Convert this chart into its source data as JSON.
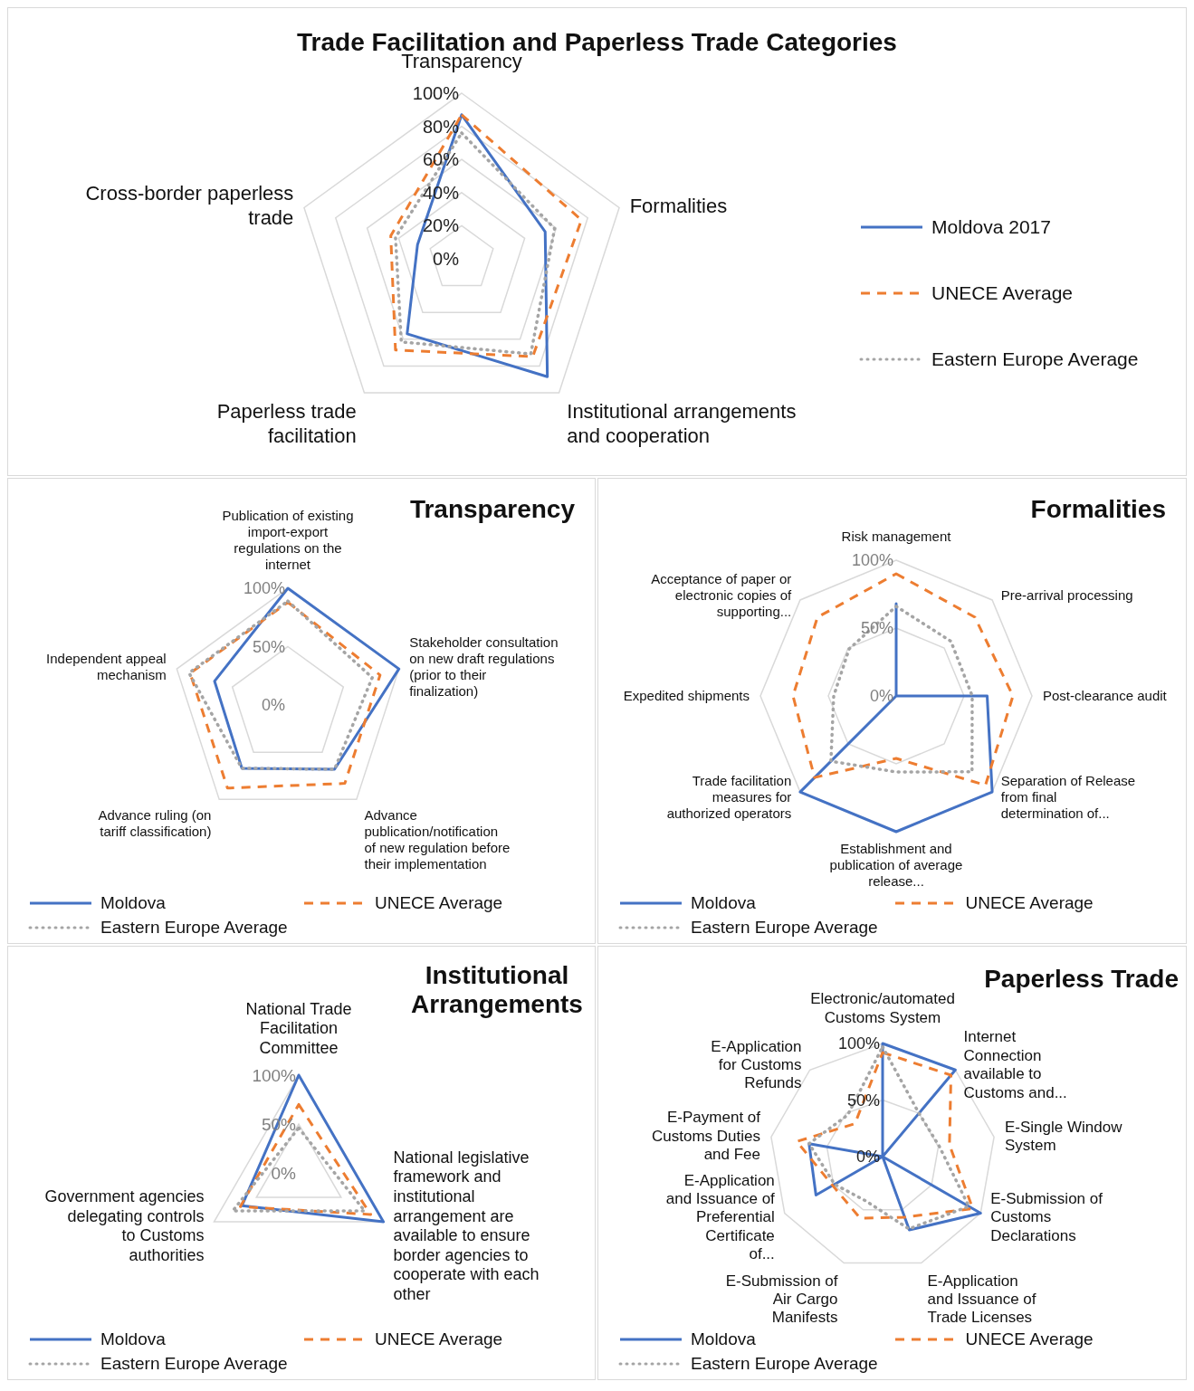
{
  "chart_data": [
    {
      "type": "radar",
      "title": "Trade Facilitation and Paperless Trade Categories",
      "categories": [
        "Transparency",
        "Formalities",
        "Institutional arrangements and cooperation",
        "Paperless trade facilitation",
        "Cross-border paperless trade"
      ],
      "ylim": [
        0,
        100
      ],
      "yticks": [
        {
          "value": 0,
          "label": "0%"
        },
        {
          "value": 20,
          "label": "20%"
        },
        {
          "value": 40,
          "label": "40%"
        },
        {
          "value": 60,
          "label": "60%"
        },
        {
          "value": 80,
          "label": "80%"
        },
        {
          "value": 100,
          "label": "100%"
        }
      ],
      "grid": true,
      "legend": "right",
      "marker": "none",
      "series": [
        {
          "name": "Moldova 2017",
          "color": "#4472c4",
          "line_style": "solid",
          "values": [
            87,
            53,
            88,
            56,
            28
          ]
        },
        {
          "name": "UNECE Average",
          "color": "#ed7d31",
          "line_style": "dashed",
          "values": [
            87,
            76,
            73,
            68,
            45
          ]
        },
        {
          "name": "Eastern Europe Average",
          "color": "#a5a5a5",
          "line_style": "dotted",
          "values": [
            76,
            59,
            71,
            62,
            42
          ]
        }
      ]
    },
    {
      "type": "radar",
      "title": "Transparency",
      "categories": [
        "Publication of existing import-export regulations on the internet",
        "Stakeholder consultation on new draft regulations (prior to their finalization)",
        "Advance publication/notification of new regulation before their implementation",
        "Advance ruling (on tariff classification)",
        "Independent appeal mechanism"
      ],
      "ylim": [
        0,
        100
      ],
      "yticks": [
        {
          "value": 0,
          "label": "0%"
        },
        {
          "value": 50,
          "label": "50%"
        },
        {
          "value": 100,
          "label": "100%"
        }
      ],
      "grid": true,
      "legend": "bottom",
      "marker": "none",
      "series": [
        {
          "name": "Moldova",
          "color": "#4472c4",
          "line_style": "solid",
          "values": [
            100,
            100,
            68,
            67,
            66
          ]
        },
        {
          "name": "UNECE Average",
          "color": "#ed7d31",
          "line_style": "dashed",
          "values": [
            88,
            83,
            83,
            88,
            88
          ]
        },
        {
          "name": "Eastern Europe Average",
          "color": "#a5a5a5",
          "line_style": "dotted",
          "values": [
            89,
            76,
            68,
            67,
            89
          ]
        }
      ]
    },
    {
      "type": "radar",
      "title": "Formalities",
      "categories": [
        "Risk management",
        "Pre-arrival processing",
        "Post-clearance audit",
        "Separation of Release from final determination of...",
        "Establishment and publication of average release...",
        "Trade facilitation measures for authorized operators",
        "Expedited shipments",
        "Acceptance of paper or electronic copies of supporting..."
      ],
      "ylim": [
        0,
        100
      ],
      "yticks": [
        {
          "value": 0,
          "label": "0%"
        },
        {
          "value": 50,
          "label": "50%"
        },
        {
          "value": 100,
          "label": "100%"
        }
      ],
      "grid": true,
      "legend": "bottom",
      "marker": "none",
      "series": [
        {
          "name": "Moldova",
          "color": "#4472c4",
          "line_style": "solid",
          "values": [
            68,
            0,
            67,
            100,
            100,
            100,
            0,
            0
          ]
        },
        {
          "name": "UNECE Average",
          "color": "#ed7d31",
          "line_style": "dashed",
          "values": [
            90,
            82,
            86,
            93,
            46,
            85,
            76,
            82
          ]
        },
        {
          "name": "Eastern Europe Average",
          "color": "#a5a5a5",
          "line_style": "dotted",
          "values": [
            66,
            57,
            56,
            79,
            56,
            68,
            46,
            49
          ]
        }
      ]
    },
    {
      "type": "radar",
      "title": "Institutional Arrangements",
      "categories": [
        "National Trade Facilitation Committee",
        "National legislative framework and institutional arrangement are available to ensure border agencies to cooperate with each other",
        "Government agencies delegating controls to Customs authorities"
      ],
      "ylim": [
        0,
        100
      ],
      "yticks": [
        {
          "value": 0,
          "label": "0%"
        },
        {
          "value": 50,
          "label": "50%"
        },
        {
          "value": 100,
          "label": "100%"
        }
      ],
      "grid": true,
      "legend": "bottom",
      "marker": "none",
      "series": [
        {
          "name": "Moldova",
          "color": "#4472c4",
          "line_style": "solid",
          "values": [
            100,
            100,
            67
          ]
        },
        {
          "name": "UNECE Average",
          "color": "#ed7d31",
          "line_style": "dashed",
          "values": [
            70,
            85,
            69
          ]
        },
        {
          "name": "Eastern Europe Average",
          "color": "#a5a5a5",
          "line_style": "dotted",
          "values": [
            46,
            78,
            78
          ]
        }
      ]
    },
    {
      "type": "radar",
      "title": "Paperless Trade",
      "categories": [
        "Electronic/automated Customs System",
        "Internet Connection available to Customs and...",
        "E-Single Window System",
        "E-Submission of Customs Declarations",
        "E-Application and Issuance of Trade Licenses",
        "E-Submission of Air Cargo Manifests",
        "E-Application and Issuance of Preferential Certificate of...",
        "E-Payment of Customs Duties and Fee",
        "E-Application for Customs Refunds"
      ],
      "ylim": [
        0,
        100
      ],
      "yticks": [
        {
          "value": 0,
          "label": "0%"
        },
        {
          "value": 50,
          "label": "50%"
        },
        {
          "value": 100,
          "label": "100%"
        }
      ],
      "grid": true,
      "legend": "bottom",
      "marker": "none",
      "series": [
        {
          "name": "Moldova",
          "color": "#4472c4",
          "line_style": "solid",
          "values": [
            100,
            100,
            0,
            100,
            69,
            null,
            68,
            66,
            0
          ]
        },
        {
          "name": "UNECE Average",
          "color": "#ed7d31",
          "line_style": "dashed",
          "values": [
            92,
            94,
            60,
            92,
            57,
            58,
            51,
            77,
            38
          ]
        },
        {
          "name": "Eastern Europe Average",
          "color": "#a5a5a5",
          "line_style": "dotted",
          "values": [
            97,
            50,
            51,
            88,
            68,
            42,
            49,
            66,
            48
          ]
        }
      ]
    }
  ]
}
